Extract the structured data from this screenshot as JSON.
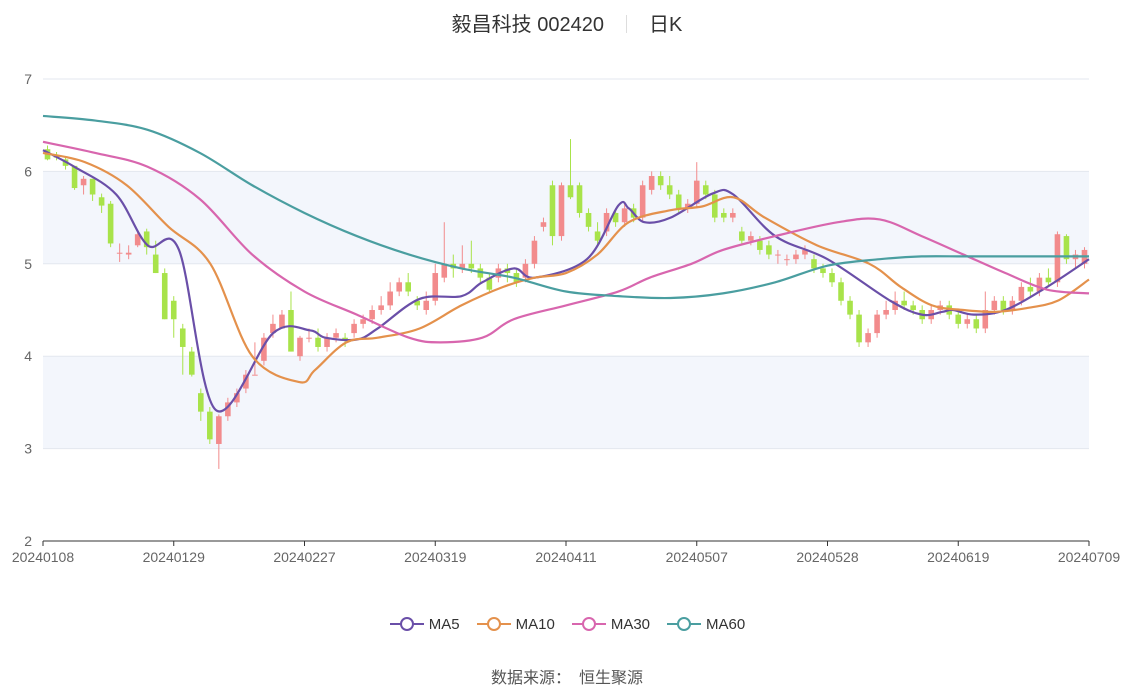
{
  "title": {
    "name": "毅昌科技 002420",
    "period": "日K"
  },
  "source": {
    "label": "数据来源：",
    "value": "恒生聚源"
  },
  "chart_data": {
    "type": "candlestick",
    "ylim": [
      2,
      7
    ],
    "yticks": [
      "2",
      "3",
      "4",
      "5",
      "6",
      "7"
    ],
    "xtick_labels": [
      "20240108",
      "20240129",
      "20240227",
      "20240319",
      "20240411",
      "20240507",
      "20240528",
      "20240619",
      "20240709"
    ],
    "colors": {
      "up": "#f28b8c",
      "down": "#a8e34a",
      "band": "#f3f6fc",
      "grid": "#e3e7ef"
    },
    "series": [
      {
        "name": "MA5",
        "color": "#6a4fa8",
        "x": [
          0,
          0.03,
          0.07,
          0.1,
          0.13,
          0.165,
          0.22,
          0.255,
          0.27,
          0.3,
          0.32,
          0.36,
          0.4,
          0.42,
          0.45,
          0.47,
          0.52,
          0.55,
          0.56,
          0.575,
          0.6,
          0.64,
          0.66,
          0.7,
          0.75,
          0.81,
          0.84,
          0.86,
          0.87,
          0.89,
          0.92,
          0.96,
          1
        ],
        "y": [
          6.23,
          6.05,
          5.75,
          5.2,
          5.15,
          3.42,
          4.25,
          4.28,
          4.2,
          4.18,
          4.3,
          4.62,
          4.65,
          4.8,
          4.95,
          4.85,
          5.05,
          5.63,
          5.6,
          5.45,
          5.5,
          5.76,
          5.75,
          5.3,
          5.05,
          4.6,
          4.45,
          4.48,
          4.5,
          4.45,
          4.5,
          4.75,
          5.05
        ]
      },
      {
        "name": "MA10",
        "color": "#e4914c",
        "x": [
          0,
          0.04,
          0.08,
          0.12,
          0.16,
          0.2,
          0.245,
          0.26,
          0.29,
          0.32,
          0.36,
          0.4,
          0.44,
          0.47,
          0.5,
          0.53,
          0.56,
          0.6,
          0.63,
          0.66,
          0.69,
          0.74,
          0.79,
          0.82,
          0.85,
          0.88,
          0.91,
          0.94,
          0.97,
          1
        ],
        "y": [
          6.2,
          6.1,
          5.85,
          5.4,
          5.0,
          4.0,
          3.72,
          3.85,
          4.15,
          4.2,
          4.3,
          4.55,
          4.75,
          4.85,
          4.9,
          5.1,
          5.45,
          5.58,
          5.62,
          5.72,
          5.5,
          5.2,
          5.0,
          4.75,
          4.55,
          4.5,
          4.48,
          4.52,
          4.6,
          4.83
        ]
      },
      {
        "name": "MA30",
        "color": "#d866ae",
        "x": [
          0,
          0.05,
          0.1,
          0.15,
          0.2,
          0.25,
          0.3,
          0.35,
          0.38,
          0.42,
          0.45,
          0.5,
          0.55,
          0.58,
          0.62,
          0.65,
          0.7,
          0.76,
          0.8,
          0.84,
          0.88,
          0.92,
          0.96,
          1
        ],
        "y": [
          6.32,
          6.2,
          6.05,
          5.7,
          5.1,
          4.7,
          4.45,
          4.2,
          4.15,
          4.2,
          4.4,
          4.55,
          4.7,
          4.85,
          5.0,
          5.15,
          5.3,
          5.45,
          5.48,
          5.3,
          5.1,
          4.9,
          4.72,
          4.68
        ]
      },
      {
        "name": "MA60",
        "color": "#4a9ea0",
        "x": [
          0,
          0.05,
          0.1,
          0.15,
          0.2,
          0.25,
          0.3,
          0.35,
          0.4,
          0.45,
          0.5,
          0.55,
          0.6,
          0.65,
          0.7,
          0.75,
          0.8,
          0.84,
          0.88,
          0.92,
          0.96,
          1
        ],
        "y": [
          6.6,
          6.55,
          6.45,
          6.2,
          5.85,
          5.55,
          5.3,
          5.1,
          4.95,
          4.85,
          4.7,
          4.65,
          4.63,
          4.68,
          4.8,
          4.98,
          5.05,
          5.08,
          5.08,
          5.08,
          5.08,
          5.08
        ]
      }
    ],
    "candles": [
      [
        6.24,
        6.13,
        6.28,
        6.12
      ],
      [
        6.18,
        6.15,
        6.21,
        6.12
      ],
      [
        6.13,
        6.06,
        6.15,
        6.02
      ],
      [
        6.06,
        5.82,
        6.06,
        5.8
      ],
      [
        5.85,
        5.92,
        5.95,
        5.75
      ],
      [
        5.92,
        5.75,
        5.92,
        5.68
      ],
      [
        5.72,
        5.63,
        5.76,
        5.55
      ],
      [
        5.65,
        5.22,
        5.68,
        5.18
      ],
      [
        5.12,
        5.12,
        5.22,
        5.02
      ],
      [
        5.1,
        5.12,
        5.2,
        5.05
      ],
      [
        5.2,
        5.32,
        5.35,
        5.18
      ],
      [
        5.35,
        5.18,
        5.38,
        5.1
      ],
      [
        5.1,
        4.9,
        5.25,
        4.9
      ],
      [
        4.9,
        4.4,
        4.95,
        4.4
      ],
      [
        4.6,
        4.4,
        4.65,
        4.2
      ],
      [
        4.3,
        4.1,
        4.35,
        3.8
      ],
      [
        4.05,
        3.8,
        4.1,
        3.78
      ],
      [
        3.6,
        3.4,
        3.65,
        3.3
      ],
      [
        3.4,
        3.1,
        3.45,
        3.05
      ],
      [
        3.05,
        3.35,
        3.37,
        2.78
      ],
      [
        3.35,
        3.5,
        3.55,
        3.3
      ],
      [
        3.5,
        3.6,
        3.65,
        3.45
      ],
      [
        3.65,
        3.8,
        3.85,
        3.6
      ],
      [
        3.8,
        3.8,
        4.15,
        3.8
      ],
      [
        3.95,
        4.2,
        4.25,
        3.9
      ],
      [
        4.25,
        4.35,
        4.45,
        4.2
      ],
      [
        4.3,
        4.45,
        4.5,
        4.3
      ],
      [
        4.5,
        4.05,
        4.7,
        4.05
      ],
      [
        4.0,
        4.2,
        4.22,
        3.95
      ],
      [
        4.2,
        4.2,
        4.3,
        4.15
      ],
      [
        4.2,
        4.1,
        4.3,
        4.05
      ],
      [
        4.1,
        4.2,
        4.25,
        4.05
      ],
      [
        4.2,
        4.25,
        4.3,
        4.15
      ],
      [
        4.2,
        4.18,
        4.25,
        4.1
      ],
      [
        4.25,
        4.35,
        4.4,
        4.2
      ],
      [
        4.35,
        4.4,
        4.45,
        4.3
      ],
      [
        4.4,
        4.5,
        4.55,
        4.35
      ],
      [
        4.5,
        4.55,
        4.65,
        4.45
      ],
      [
        4.55,
        4.7,
        4.8,
        4.5
      ],
      [
        4.7,
        4.8,
        4.85,
        4.65
      ],
      [
        4.8,
        4.7,
        4.9,
        4.65
      ],
      [
        4.6,
        4.55,
        4.65,
        4.5
      ],
      [
        4.5,
        4.6,
        4.7,
        4.45
      ],
      [
        4.6,
        4.9,
        5.0,
        4.55
      ],
      [
        4.85,
        5.0,
        5.45,
        4.8
      ],
      [
        5.0,
        4.95,
        5.1,
        4.85
      ],
      [
        4.95,
        5.0,
        5.2,
        4.9
      ],
      [
        5.0,
        4.95,
        5.25,
        4.9
      ],
      [
        4.95,
        4.85,
        5.0,
        4.8
      ],
      [
        4.85,
        4.72,
        4.9,
        4.7
      ],
      [
        4.85,
        4.95,
        5.0,
        4.8
      ],
      [
        4.95,
        4.9,
        5.0,
        4.8
      ],
      [
        4.9,
        4.8,
        4.95,
        4.75
      ],
      [
        4.85,
        5.0,
        5.05,
        4.8
      ],
      [
        5.0,
        5.25,
        5.3,
        4.95
      ],
      [
        5.4,
        5.45,
        5.5,
        5.35
      ],
      [
        5.85,
        5.3,
        5.9,
        5.2
      ],
      [
        5.3,
        5.85,
        5.88,
        5.25
      ],
      [
        5.85,
        5.72,
        6.35,
        5.7
      ],
      [
        5.85,
        5.55,
        5.88,
        5.5
      ],
      [
        5.55,
        5.4,
        5.6,
        5.35
      ],
      [
        5.35,
        5.25,
        5.45,
        5.2
      ],
      [
        5.35,
        5.55,
        5.6,
        5.3
      ],
      [
        5.55,
        5.45,
        5.6,
        5.4
      ],
      [
        5.45,
        5.6,
        5.65,
        5.4
      ],
      [
        5.6,
        5.5,
        5.65,
        5.45
      ],
      [
        5.5,
        5.85,
        5.9,
        5.45
      ],
      [
        5.8,
        5.95,
        6.0,
        5.75
      ],
      [
        5.95,
        5.85,
        6.0,
        5.8
      ],
      [
        5.85,
        5.75,
        5.95,
        5.7
      ],
      [
        5.75,
        5.6,
        5.8,
        5.55
      ],
      [
        5.6,
        5.65,
        5.7,
        5.55
      ],
      [
        5.65,
        5.9,
        6.1,
        5.6
      ],
      [
        5.85,
        5.75,
        5.9,
        5.7
      ],
      [
        5.75,
        5.5,
        5.8,
        5.45
      ],
      [
        5.55,
        5.5,
        5.6,
        5.45
      ],
      [
        5.5,
        5.55,
        5.6,
        5.45
      ],
      [
        5.35,
        5.25,
        5.4,
        5.2
      ],
      [
        5.25,
        5.3,
        5.35,
        5.2
      ],
      [
        5.25,
        5.15,
        5.3,
        5.1
      ],
      [
        5.2,
        5.1,
        5.25,
        5.05
      ],
      [
        5.1,
        5.1,
        5.15,
        5.0
      ],
      [
        5.05,
        5.05,
        5.1,
        4.98
      ],
      [
        5.05,
        5.1,
        5.15,
        5.0
      ],
      [
        5.1,
        5.15,
        5.2,
        5.05
      ],
      [
        5.05,
        4.95,
        5.1,
        4.9
      ],
      [
        4.95,
        4.9,
        5.0,
        4.85
      ],
      [
        4.9,
        4.8,
        4.95,
        4.75
      ],
      [
        4.8,
        4.6,
        4.85,
        4.55
      ],
      [
        4.6,
        4.45,
        4.65,
        4.4
      ],
      [
        4.45,
        4.15,
        4.5,
        4.1
      ],
      [
        4.15,
        4.25,
        4.3,
        4.1
      ],
      [
        4.25,
        4.45,
        4.5,
        4.2
      ],
      [
        4.45,
        4.5,
        4.6,
        4.4
      ],
      [
        4.5,
        4.6,
        4.7,
        4.45
      ],
      [
        4.6,
        4.55,
        4.7,
        4.5
      ],
      [
        4.55,
        4.5,
        4.6,
        4.45
      ],
      [
        4.5,
        4.4,
        4.55,
        4.35
      ],
      [
        4.4,
        4.5,
        4.55,
        4.35
      ],
      [
        4.5,
        4.55,
        4.6,
        4.45
      ],
      [
        4.55,
        4.45,
        4.6,
        4.4
      ],
      [
        4.45,
        4.35,
        4.5,
        4.3
      ],
      [
        4.35,
        4.4,
        4.45,
        4.3
      ],
      [
        4.4,
        4.3,
        4.45,
        4.25
      ],
      [
        4.3,
        4.5,
        4.7,
        4.25
      ],
      [
        4.5,
        4.6,
        4.65,
        4.45
      ],
      [
        4.6,
        4.5,
        4.65,
        4.45
      ],
      [
        4.5,
        4.6,
        4.65,
        4.45
      ],
      [
        4.6,
        4.75,
        4.8,
        4.55
      ],
      [
        4.75,
        4.7,
        4.85,
        4.65
      ],
      [
        4.7,
        4.85,
        4.9,
        4.65
      ],
      [
        4.85,
        4.8,
        4.95,
        4.75
      ],
      [
        4.8,
        5.32,
        5.35,
        4.75
      ],
      [
        5.3,
        5.05,
        5.32,
        5.0
      ],
      [
        5.05,
        5.1,
        5.15,
        4.95
      ],
      [
        5.0,
        5.15,
        5.18,
        4.95
      ]
    ]
  }
}
